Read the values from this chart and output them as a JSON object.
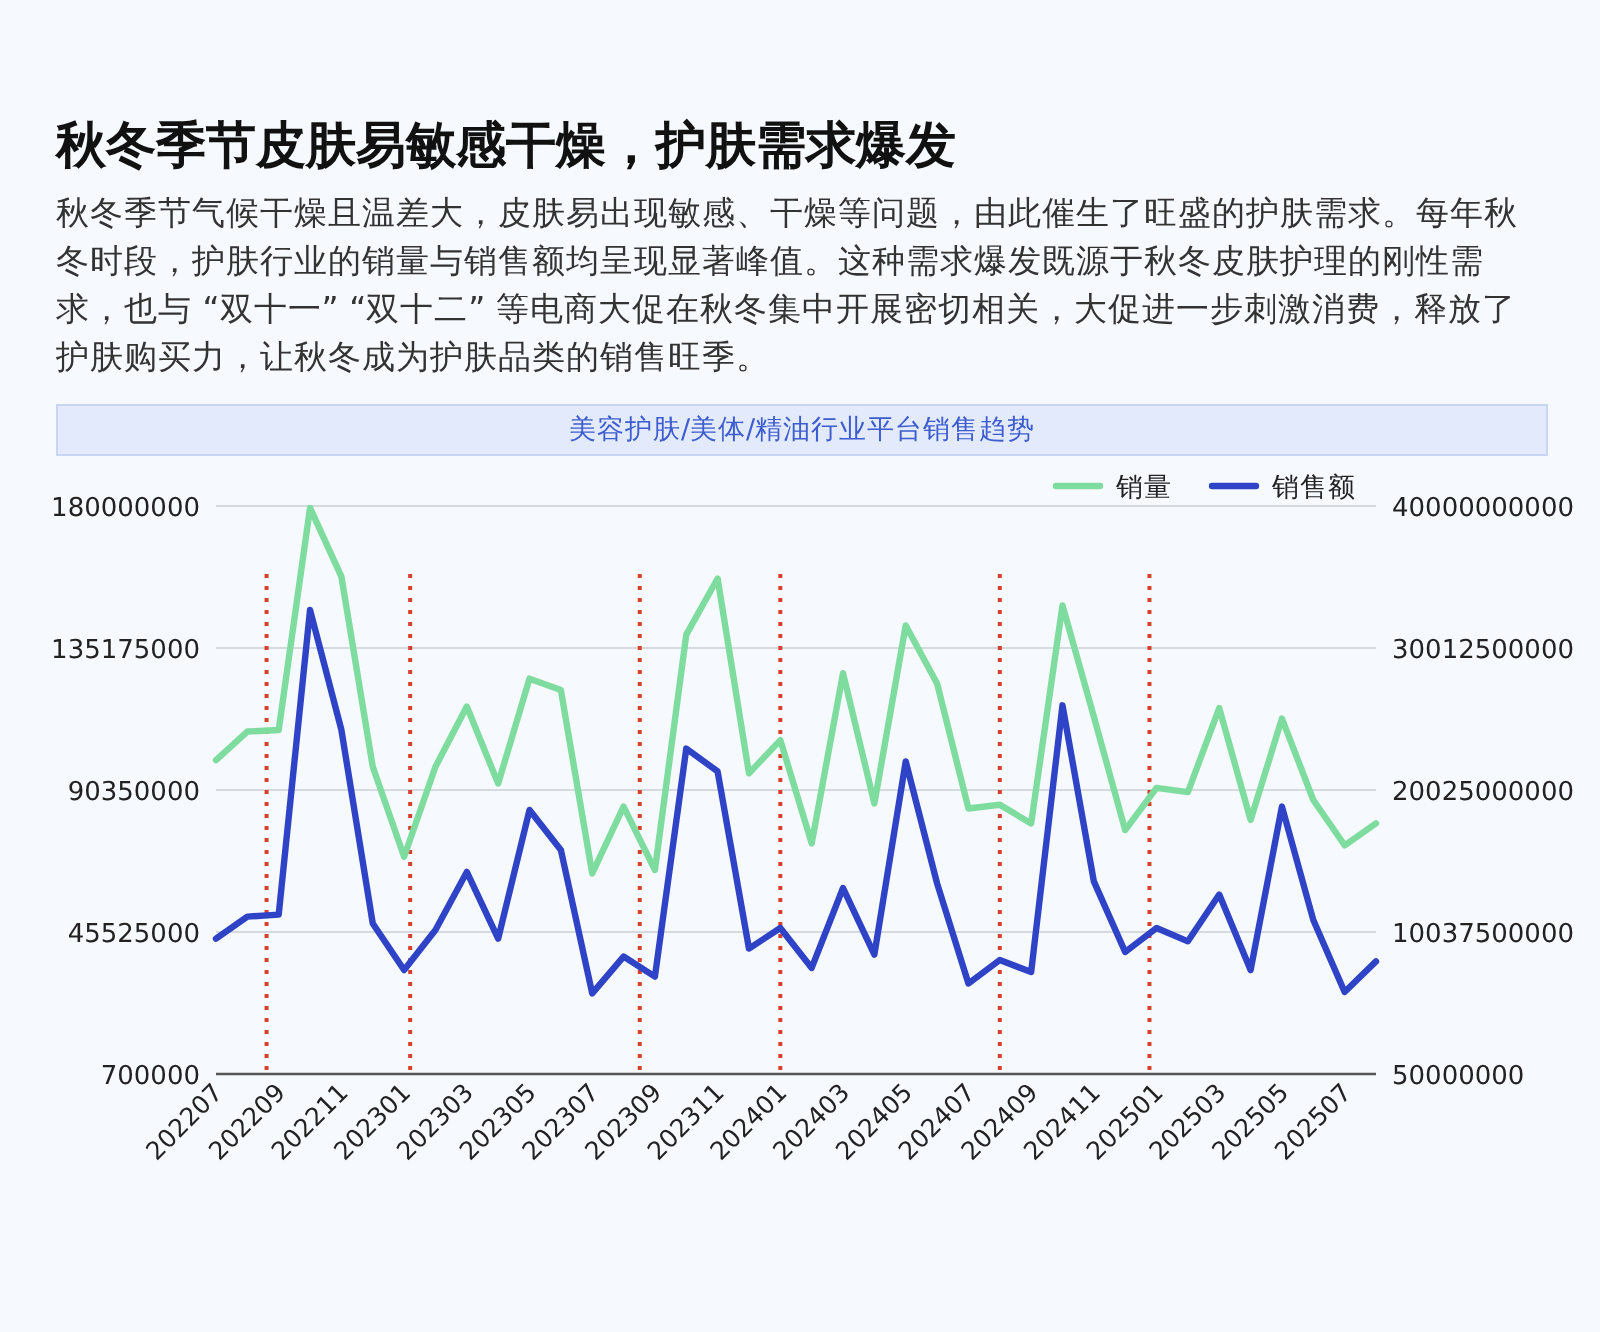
{
  "chart_data": {
    "type": "line",
    "title": "秋冬季节皮肤易敏感干燥，护肤需求爆发",
    "subtitle": "秋冬季节气候干燥且温差大，皮肤易出现敏感、干燥等问题，由此催生了旺盛的护肤需求。每年秋冬时段，护肤行业的销量与销售额均呈现显著峰值。这种需求爆发既源于秋冬皮肤护理的刚性需求，也与 “双十一” “双十二” 等电商大促在秋冬集中开展密切相关，大促进一步刺激消费，释放了护肤购买力，让秋冬成为护肤品类的销售旺季。",
    "annotations": [
      "美容护肤/美体/精油行业平台销售趋势"
    ],
    "x": [
      "2022-07",
      "2022-08",
      "2022-09",
      "2022-10",
      "2022-11",
      "2022-12",
      "2023-01",
      "2023-02",
      "2023-03",
      "2023-04",
      "2023-05",
      "2023-06",
      "2023-07",
      "2023-08",
      "2023-09",
      "2023-10",
      "2023-11",
      "2023-12",
      "2024-01",
      "2024-02",
      "2024-03",
      "2024-04",
      "2024-05",
      "2024-06",
      "2024-07",
      "2024-08",
      "2024-09",
      "2024-10",
      "2024-11",
      "2024-12",
      "2025-01",
      "2025-02",
      "2025-03",
      "2025-04",
      "2025-05",
      "2025-06",
      "2025-07",
      "2025-08"
    ],
    "series": [
      {
        "name": "销量",
        "color": "#7fdc9f",
        "values": [
          99800000,
          108800000,
          109300000,
          179400000,
          157700000,
          97700000,
          69300000,
          97700000,
          116700000,
          92400000,
          125500000,
          121900000,
          64000000,
          85100000,
          65100000,
          139400000,
          157100000,
          95600000,
          106100000,
          73500000,
          127200000,
          86100000,
          142300000,
          124000000,
          84500000,
          85700000,
          79800000,
          148600000,
          113500000,
          77700000,
          91000000,
          89700000,
          116200000,
          80900000,
          112900000,
          87200000,
          72900000,
          79800000
        ]
      },
      {
        "name": "销售额",
        "color": "#2f43c6",
        "axis": "y2",
        "values": [
          9570000000,
          11120000000,
          11260000000,
          32690000000,
          24250000000,
          10640000000,
          7360000000,
          10180000000,
          14260000000,
          9570000000,
          18620000000,
          15810000000,
          5720000000,
          8310000000,
          6900000000,
          22940000000,
          21330000000,
          8870000000,
          10320000000,
          7510000000,
          13130000000,
          8450000000,
          22040000000,
          13460000000,
          6420000000,
          8070000000,
          7220000000,
          25980000000,
          13600000000,
          8630000000,
          10320000000,
          9380000000,
          12670000000,
          7360000000,
          18860000000,
          10880000000,
          5820000000,
          7970000000
        ]
      }
    ],
    "xlim": [
      "2022-07",
      "2025-08"
    ],
    "xticks": [
      {
        "value": "2022-07",
        "label": "202207"
      },
      {
        "value": "2022-09",
        "label": "202209"
      },
      {
        "value": "2022-11",
        "label": "202211"
      },
      {
        "value": "2023-01",
        "label": "202301"
      },
      {
        "value": "2023-03",
        "label": "202303"
      },
      {
        "value": "2023-05",
        "label": "202305"
      },
      {
        "value": "2023-07",
        "label": "202307"
      },
      {
        "value": "2023-09",
        "label": "202309"
      },
      {
        "value": "2023-11",
        "label": "202311"
      },
      {
        "value": "2024-01",
        "label": "202401"
      },
      {
        "value": "2024-03",
        "label": "202403"
      },
      {
        "value": "2024-05",
        "label": "202405"
      },
      {
        "value": "2024-07",
        "label": "202407"
      },
      {
        "value": "2024-09",
        "label": "202409"
      },
      {
        "value": "2024-11",
        "label": "202411"
      },
      {
        "value": "2025-01",
        "label": "202501"
      },
      {
        "value": "2025-03",
        "label": "202503"
      },
      {
        "value": "2025-05",
        "label": "202505"
      },
      {
        "value": "2025-07",
        "label": "202507"
      }
    ],
    "ylim": [
      700000,
      180000000
    ],
    "yticks": [
      700000,
      45525000,
      90350000,
      135175000,
      180000000
    ],
    "y2lim": [
      50000000,
      40000000000
    ],
    "y2ticks": [
      50000000,
      10037500000,
      20025000000,
      30012500000,
      40000000000
    ],
    "ref_lines": [
      {
        "axis": "x",
        "value": "2022-08-20",
        "color": "#d9402b",
        "line_style": "dotted"
      },
      {
        "axis": "x",
        "value": "2023-01-07",
        "color": "#d9402b",
        "line_style": "dotted"
      },
      {
        "axis": "x",
        "value": "2023-08-17",
        "color": "#d9402b",
        "line_style": "dotted"
      },
      {
        "axis": "x",
        "value": "2024-01-01",
        "color": "#d9402b",
        "line_style": "dotted"
      },
      {
        "axis": "x",
        "value": "2024-08-01",
        "color": "#d9402b",
        "line_style": "dotted"
      },
      {
        "axis": "x",
        "value": "2024-12-25",
        "color": "#d9402b",
        "line_style": "dotted"
      }
    ],
    "grid": "y",
    "legend": "top right",
    "marker": "none",
    "line_style": "solid"
  }
}
